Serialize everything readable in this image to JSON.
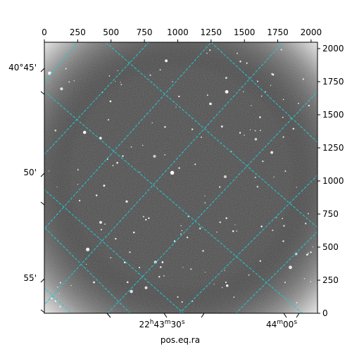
{
  "chart_data": {
    "type": "image",
    "xlabel": "pos.eq.ra",
    "ylabel": "",
    "pixel_axis": {
      "xlim": [
        0,
        2048
      ],
      "ylim": [
        0,
        2048
      ],
      "x_ticks": [
        "0",
        "250",
        "500",
        "750",
        "1000",
        "1250",
        "1500",
        "1750",
        "2000"
      ],
      "y_ticks": [
        "0",
        "250",
        "500",
        "750",
        "1000",
        "1250",
        "1500",
        "1750",
        "2000"
      ]
    },
    "world_axis": {
      "ra_ticks": [
        {
          "h": "22",
          "hs": "h",
          "m": "43",
          "ms": "m",
          "s": "30",
          "ss": "s"
        },
        {
          "h": "",
          "hs": "",
          "m": "44",
          "ms": "m",
          "s": "00",
          "ss": "s"
        }
      ],
      "dec_ticks": [
        "40°45'",
        "50'",
        "55'"
      ]
    },
    "grid": true,
    "grid_color": "#22c8d0",
    "image_colormap": "gray"
  }
}
